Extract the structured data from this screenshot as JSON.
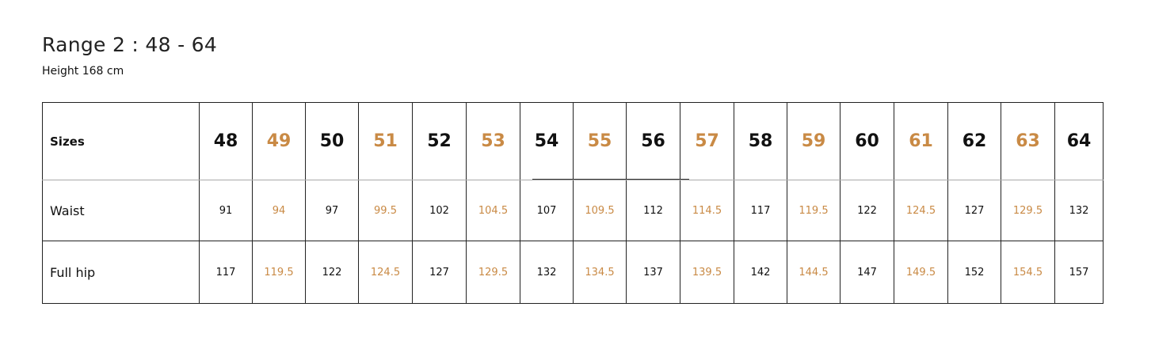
{
  "title": "Range 2 : 48 - 64",
  "subtitle": "Height 168 cm",
  "accent_color": "#c98a45",
  "table": {
    "rows": [
      {
        "label": "Sizes",
        "values": [
          "48",
          "49",
          "50",
          "51",
          "52",
          "53",
          "54",
          "55",
          "56",
          "57",
          "58",
          "59",
          "60",
          "61",
          "62",
          "63",
          "64"
        ]
      },
      {
        "label": "Waist",
        "values": [
          "91",
          "94",
          "97",
          "99.5",
          "102",
          "104.5",
          "107",
          "109.5",
          "112",
          "114.5",
          "117",
          "119.5",
          "122",
          "124.5",
          "127",
          "129.5",
          "132"
        ]
      },
      {
        "label": "Full hip",
        "values": [
          "117",
          "119.5",
          "122",
          "124.5",
          "127",
          "129.5",
          "132",
          "134.5",
          "137",
          "139.5",
          "142",
          "144.5",
          "147",
          "149.5",
          "152",
          "154.5",
          "157"
        ]
      }
    ]
  }
}
